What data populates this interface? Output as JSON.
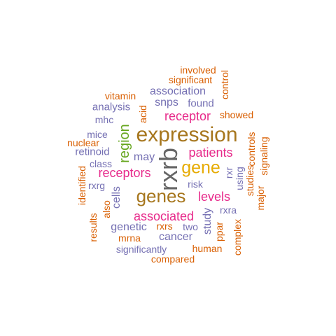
{
  "palette": {
    "orange": "#D95F02",
    "purple": "#7570B3",
    "magenta": "#E7298A",
    "green": "#66A61E",
    "gold": "#E6AB02",
    "brown": "#A6761D",
    "gray": "#666666"
  },
  "words": [
    {
      "text": "rxrb",
      "color": "gray",
      "vertical": true
    },
    {
      "text": "expression",
      "color": "brown",
      "vertical": false
    },
    {
      "text": "genes",
      "color": "brown",
      "vertical": false
    },
    {
      "text": "gene",
      "color": "gold",
      "vertical": false
    },
    {
      "text": "region",
      "color": "green",
      "vertical": true
    },
    {
      "text": "patients",
      "color": "magenta",
      "vertical": false
    },
    {
      "text": "receptors",
      "color": "magenta",
      "vertical": false
    },
    {
      "text": "associated",
      "color": "magenta",
      "vertical": false
    },
    {
      "text": "receptor",
      "color": "magenta",
      "vertical": false
    },
    {
      "text": "levels",
      "color": "magenta",
      "vertical": false
    },
    {
      "text": "association",
      "color": "purple",
      "vertical": false
    },
    {
      "text": "snps",
      "color": "purple",
      "vertical": false
    },
    {
      "text": "found",
      "color": "purple",
      "vertical": false
    },
    {
      "text": "analysis",
      "color": "purple",
      "vertical": false
    },
    {
      "text": "may",
      "color": "purple",
      "vertical": false
    },
    {
      "text": "genetic",
      "color": "purple",
      "vertical": false
    },
    {
      "text": "cells",
      "color": "purple",
      "vertical": true
    },
    {
      "text": "study",
      "color": "purple",
      "vertical": true
    },
    {
      "text": "cancer",
      "color": "purple",
      "vertical": false
    },
    {
      "text": "retinoid",
      "color": "purple",
      "vertical": false
    },
    {
      "text": "mice",
      "color": "purple",
      "vertical": false
    },
    {
      "text": "mhc",
      "color": "purple",
      "vertical": false
    },
    {
      "text": "class",
      "color": "purple",
      "vertical": false
    },
    {
      "text": "rxrg",
      "color": "purple",
      "vertical": false
    },
    {
      "text": "risk",
      "color": "purple",
      "vertical": false
    },
    {
      "text": "rxr",
      "color": "purple",
      "vertical": true
    },
    {
      "text": "using",
      "color": "purple",
      "vertical": true
    },
    {
      "text": "rxra",
      "color": "purple",
      "vertical": false
    },
    {
      "text": "two",
      "color": "purple",
      "vertical": false
    },
    {
      "text": "significantly",
      "color": "purple",
      "vertical": false
    },
    {
      "text": "involved",
      "color": "orange",
      "vertical": false
    },
    {
      "text": "significant",
      "color": "orange",
      "vertical": false
    },
    {
      "text": "control",
      "color": "orange",
      "vertical": true
    },
    {
      "text": "vitamin",
      "color": "orange",
      "vertical": false
    },
    {
      "text": "acid",
      "color": "orange",
      "vertical": true
    },
    {
      "text": "showed",
      "color": "orange",
      "vertical": false
    },
    {
      "text": "nuclear",
      "color": "orange",
      "vertical": false
    },
    {
      "text": "controls",
      "color": "orange",
      "vertical": true
    },
    {
      "text": "signaling",
      "color": "orange",
      "vertical": true
    },
    {
      "text": "studies",
      "color": "orange",
      "vertical": true
    },
    {
      "text": "major",
      "color": "orange",
      "vertical": true
    },
    {
      "text": "identified",
      "color": "orange",
      "vertical": true
    },
    {
      "text": "also",
      "color": "orange",
      "vertical": true
    },
    {
      "text": "results",
      "color": "orange",
      "vertical": true
    },
    {
      "text": "rxrs",
      "color": "orange",
      "vertical": false
    },
    {
      "text": "mrna",
      "color": "orange",
      "vertical": false
    },
    {
      "text": "ppar",
      "color": "orange",
      "vertical": true
    },
    {
      "text": "complex",
      "color": "orange",
      "vertical": true
    },
    {
      "text": "human",
      "color": "orange",
      "vertical": false
    },
    {
      "text": "compared",
      "color": "orange",
      "vertical": false
    }
  ]
}
